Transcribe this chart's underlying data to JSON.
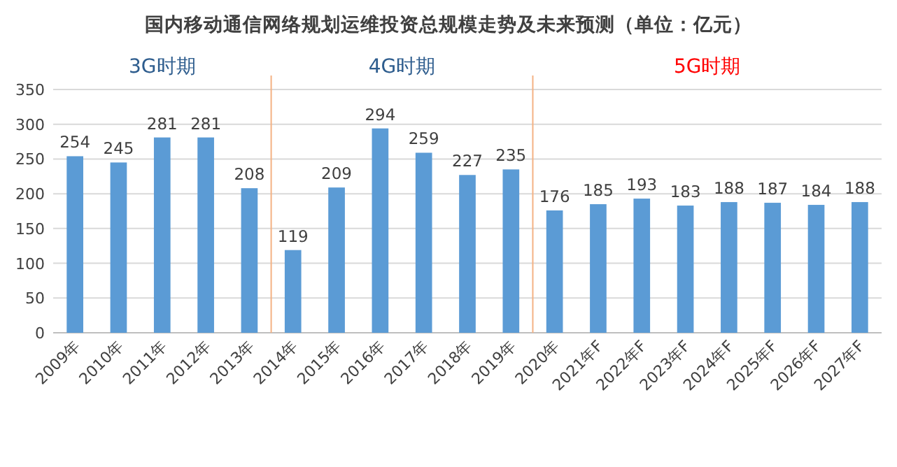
{
  "chart_data": {
    "type": "bar",
    "title": "国内移动通信网络规划运维投资总规模走势及未来预测（单位：亿元）",
    "categories": [
      "2009年",
      "2010年",
      "2011年",
      "2012年",
      "2013年",
      "2014年",
      "2015年",
      "2016年",
      "2017年",
      "2018年",
      "2019年",
      "2020年",
      "2021年F",
      "2022年F",
      "2023年F",
      "2024年F",
      "2025年F",
      "2026年F",
      "2027年F"
    ],
    "values": [
      254,
      245,
      281,
      281,
      208,
      119,
      209,
      294,
      259,
      227,
      235,
      176,
      185,
      193,
      183,
      188,
      187,
      184,
      188
    ],
    "color": "#5b9bd5",
    "data_labels": true,
    "ylim": [
      0,
      350
    ],
    "yticks": [
      0,
      50,
      100,
      150,
      200,
      250,
      300,
      350
    ],
    "grid": "y",
    "annotations": [
      "3G时期",
      "4G时期",
      "5G时期"
    ]
  }
}
